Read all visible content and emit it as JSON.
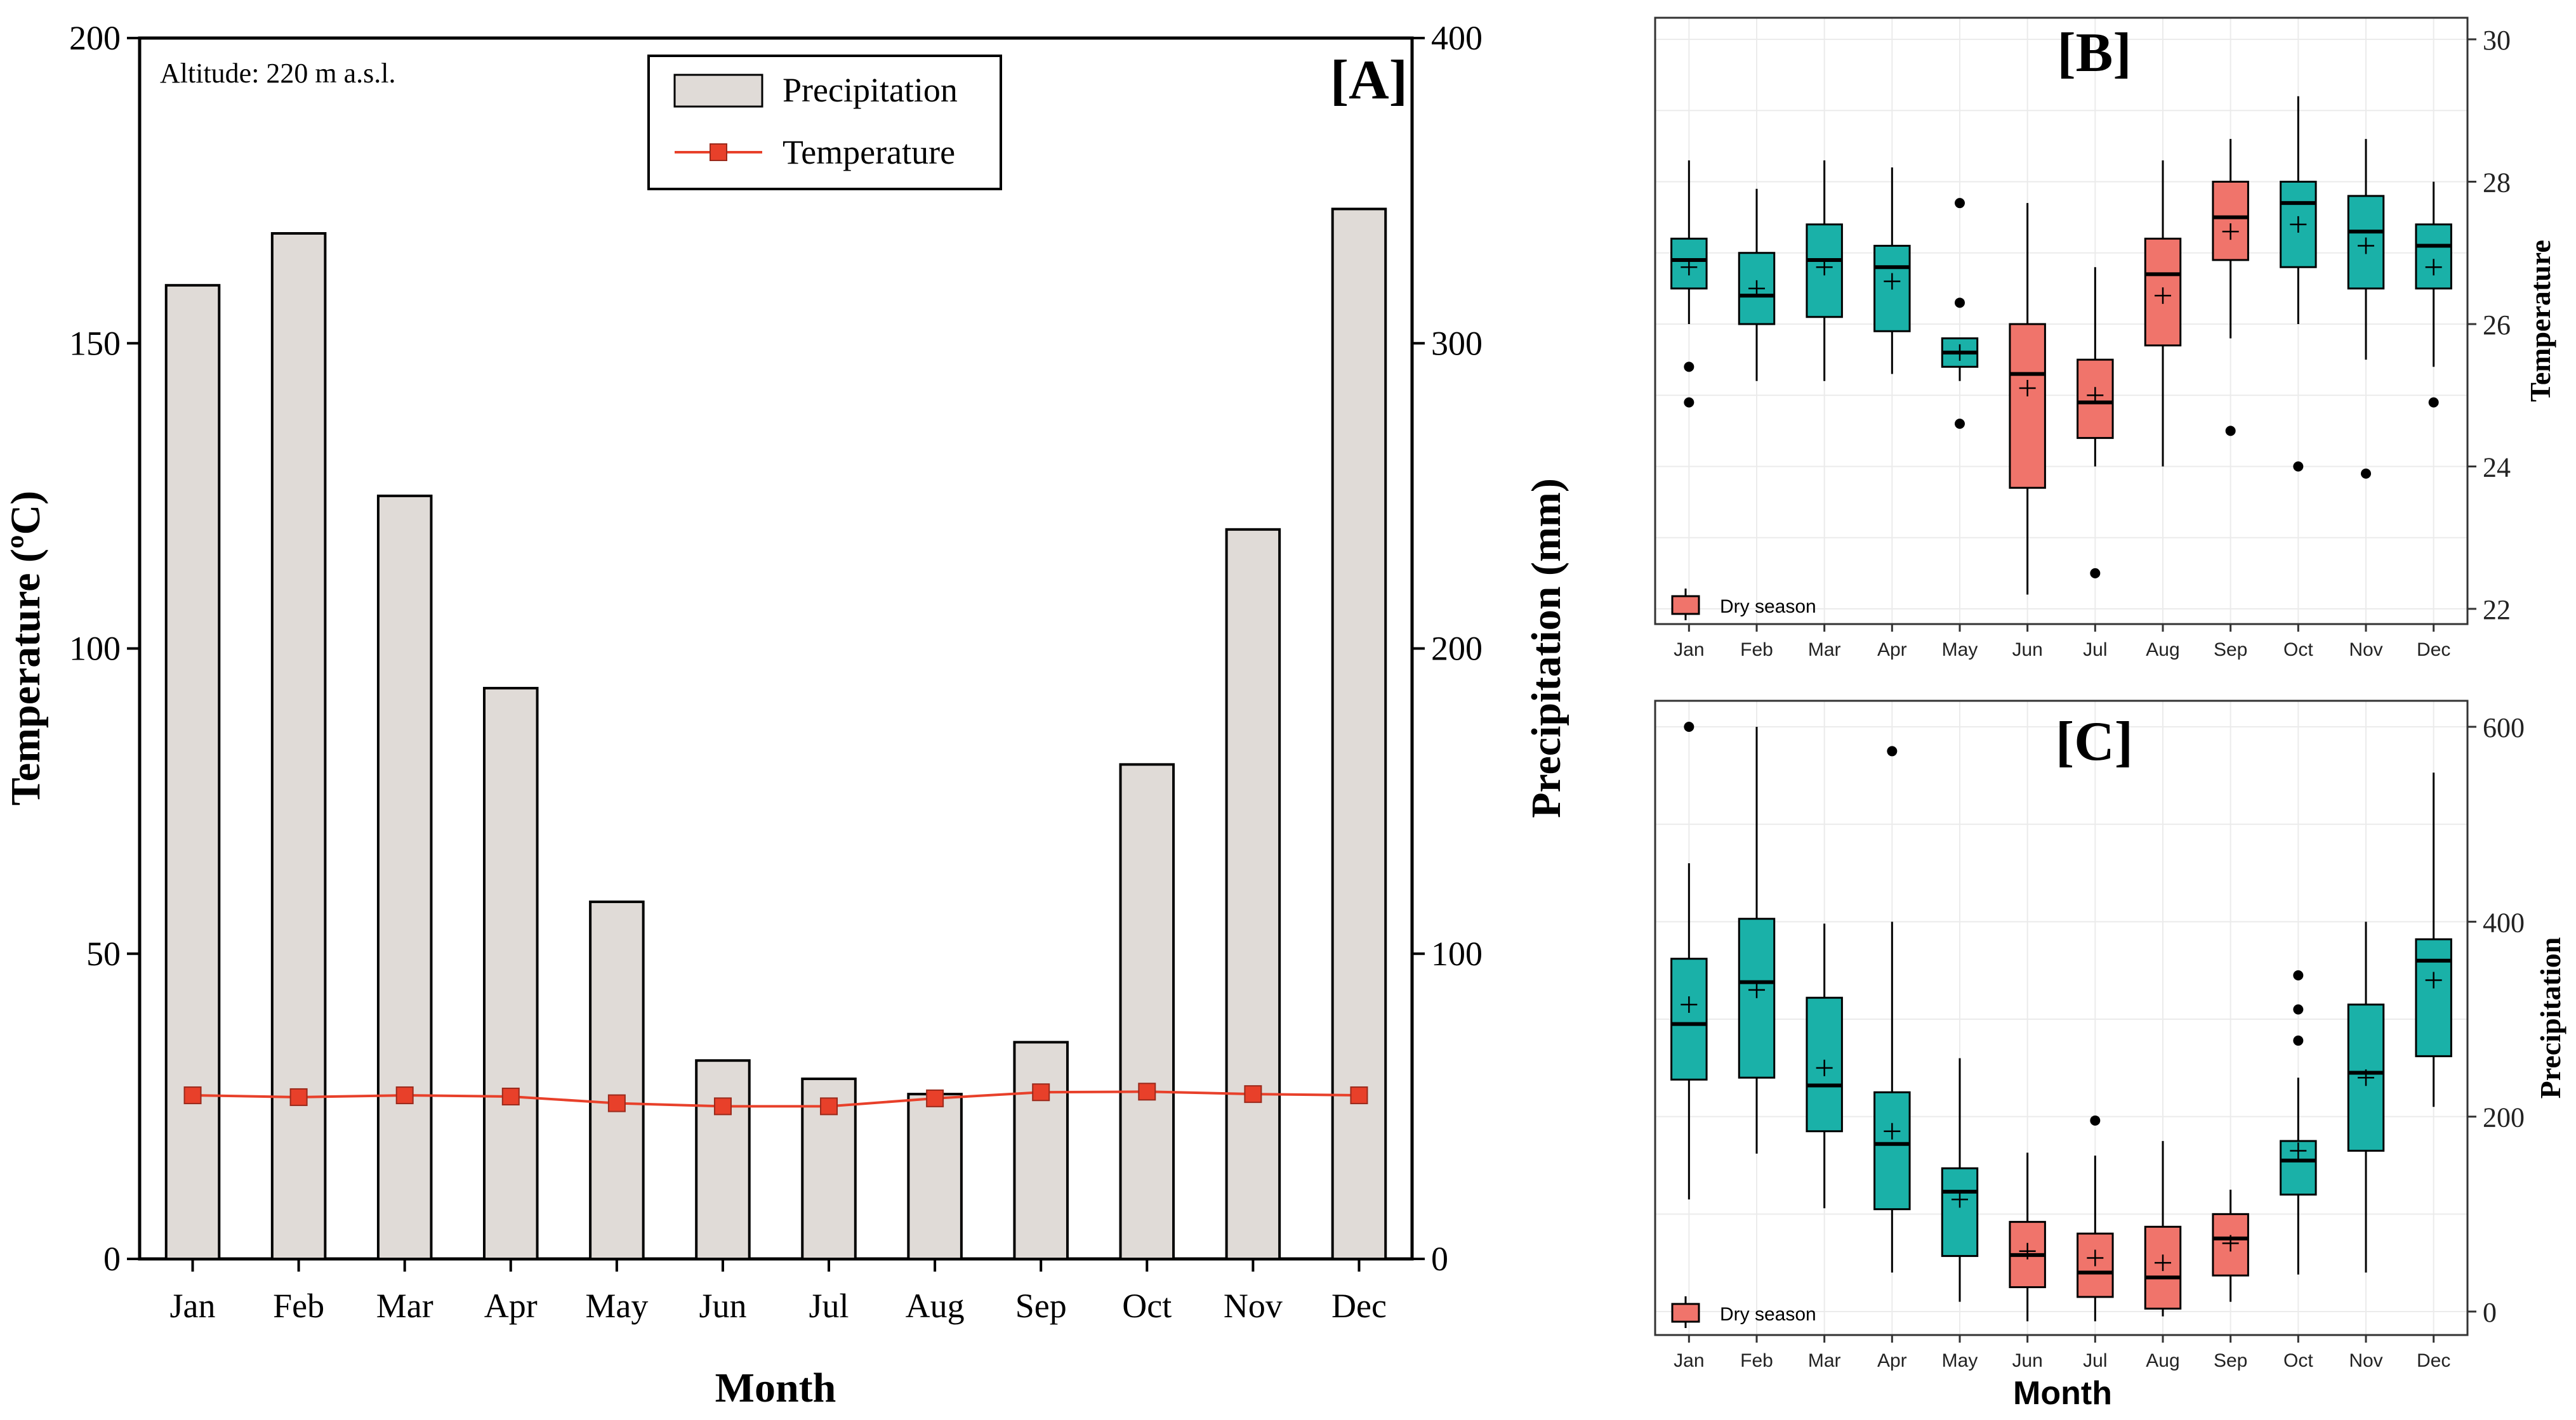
{
  "months": [
    "Jan",
    "Feb",
    "Mar",
    "Apr",
    "May",
    "Jun",
    "Jul",
    "Aug",
    "Sep",
    "Oct",
    "Nov",
    "Dec"
  ],
  "colors": {
    "bar_fill": "#e0dbd7",
    "temp_line": "#e8402a",
    "wet": "#1ab1a8",
    "dry": "#f0746b",
    "grid": "#ebebeb"
  },
  "chart_data": [
    {
      "type": "bar",
      "panel_label": "[A]",
      "annotation": "Altitude: 220 m a.s.l.",
      "xlabel": "Month",
      "ylabel_left": "Temperature (ºC)",
      "ylabel_right": "Precipitation (mm)",
      "ylim_left": [
        0,
        200
      ],
      "ylim_right": [
        0,
        400
      ],
      "yticks_left": [
        "0",
        "50",
        "100",
        "150",
        "200"
      ],
      "yticks_right": [
        "0",
        "100",
        "200",
        "300",
        "400"
      ],
      "categories": [
        "Jan",
        "Feb",
        "Mar",
        "Apr",
        "May",
        "Jun",
        "Jul",
        "Aug",
        "Sep",
        "Oct",
        "Nov",
        "Dec"
      ],
      "series": [
        {
          "name": "Precipitation",
          "type": "bar",
          "axis": "right",
          "values": [
            319,
            336,
            250,
            187,
            117,
            65,
            59,
            54,
            71,
            162,
            239,
            344
          ]
        },
        {
          "name": "Temperature",
          "type": "line",
          "axis": "left",
          "values": [
            26.8,
            26.5,
            26.8,
            26.6,
            25.5,
            25.0,
            25.0,
            26.3,
            27.3,
            27.4,
            27.0,
            26.8
          ]
        }
      ]
    },
    {
      "type": "boxplot",
      "panel_label": "[B]",
      "ylabel": "Temperature",
      "ylim": [
        21.8,
        30.3
      ],
      "yticks": [
        "22",
        "24",
        "26",
        "28",
        "30"
      ],
      "legend": "Dry season",
      "categories": [
        "Jan",
        "Feb",
        "Mar",
        "Apr",
        "May",
        "Jun",
        "Jul",
        "Aug",
        "Sep",
        "Oct",
        "Nov",
        "Dec"
      ],
      "dry": [
        false,
        false,
        false,
        false,
        false,
        true,
        true,
        true,
        true,
        false,
        false,
        false
      ],
      "stats": [
        {
          "whislo": 26.0,
          "q1": 26.5,
          "med": 26.9,
          "q3": 27.2,
          "whishi": 28.3,
          "mean": 26.8,
          "fliers": [
            25.4,
            24.9
          ]
        },
        {
          "whislo": 25.2,
          "q1": 26.0,
          "med": 26.4,
          "q3": 27.0,
          "whishi": 27.9,
          "mean": 26.5,
          "fliers": []
        },
        {
          "whislo": 25.2,
          "q1": 26.1,
          "med": 26.9,
          "q3": 27.4,
          "whishi": 28.3,
          "mean": 26.8,
          "fliers": []
        },
        {
          "whislo": 25.3,
          "q1": 25.9,
          "med": 26.8,
          "q3": 27.1,
          "whishi": 28.2,
          "mean": 26.6,
          "fliers": []
        },
        {
          "whislo": 25.2,
          "q1": 25.4,
          "med": 25.6,
          "q3": 25.8,
          "whishi": 25.8,
          "mean": 25.6,
          "fliers": [
            27.7,
            26.3,
            24.6
          ]
        },
        {
          "whislo": 22.2,
          "q1": 23.7,
          "med": 25.3,
          "q3": 26.0,
          "whishi": 27.7,
          "mean": 25.1,
          "fliers": []
        },
        {
          "whislo": 24.0,
          "q1": 24.4,
          "med": 24.9,
          "q3": 25.5,
          "whishi": 26.8,
          "mean": 25.0,
          "fliers": [
            22.5
          ]
        },
        {
          "whislo": 24.0,
          "q1": 25.7,
          "med": 26.7,
          "q3": 27.2,
          "whishi": 28.3,
          "mean": 26.4,
          "fliers": []
        },
        {
          "whislo": 25.8,
          "q1": 26.9,
          "med": 27.5,
          "q3": 28.0,
          "whishi": 28.6,
          "mean": 27.3,
          "fliers": [
            24.5
          ]
        },
        {
          "whislo": 26.0,
          "q1": 26.8,
          "med": 27.7,
          "q3": 28.0,
          "whishi": 29.2,
          "mean": 27.4,
          "fliers": [
            24.0
          ]
        },
        {
          "whislo": 25.5,
          "q1": 26.5,
          "med": 27.3,
          "q3": 27.8,
          "whishi": 28.6,
          "mean": 27.1,
          "fliers": [
            23.9
          ]
        },
        {
          "whislo": 25.4,
          "q1": 26.5,
          "med": 27.1,
          "q3": 27.4,
          "whishi": 28.0,
          "mean": 26.8,
          "fliers": [
            24.9
          ]
        }
      ]
    },
    {
      "type": "boxplot",
      "panel_label": "[C]",
      "xlabel": "Month",
      "ylabel": "Precipitation",
      "ylim": [
        -20,
        620
      ],
      "yticks": [
        "0",
        "200",
        "400",
        "600"
      ],
      "legend": "Dry season",
      "categories": [
        "Jan",
        "Feb",
        "Mar",
        "Apr",
        "May",
        "Jun",
        "Jul",
        "Aug",
        "Sep",
        "Oct",
        "Nov",
        "Dec"
      ],
      "dry": [
        false,
        false,
        false,
        false,
        false,
        true,
        true,
        true,
        true,
        false,
        false,
        false
      ],
      "stats": [
        {
          "whislo": 115,
          "q1": 238,
          "med": 295,
          "q3": 362,
          "whishi": 460,
          "mean": 315,
          "fliers": [
            600
          ]
        },
        {
          "whislo": 162,
          "q1": 240,
          "med": 338,
          "q3": 403,
          "whishi": 600,
          "mean": 330,
          "fliers": []
        },
        {
          "whislo": 106,
          "q1": 185,
          "med": 232,
          "q3": 322,
          "whishi": 398,
          "mean": 250,
          "fliers": []
        },
        {
          "whislo": 40,
          "q1": 105,
          "med": 172,
          "q3": 225,
          "whishi": 400,
          "mean": 185,
          "fliers": [
            575
          ]
        },
        {
          "whislo": 10,
          "q1": 57,
          "med": 123,
          "q3": 147,
          "whishi": 260,
          "mean": 115,
          "fliers": []
        },
        {
          "whislo": -10,
          "q1": 25,
          "med": 58,
          "q3": 92,
          "whishi": 163,
          "mean": 62,
          "fliers": []
        },
        {
          "whislo": -10,
          "q1": 15,
          "med": 40,
          "q3": 80,
          "whishi": 160,
          "mean": 55,
          "fliers": [
            196
          ]
        },
        {
          "whislo": -5,
          "q1": 3,
          "med": 35,
          "q3": 87,
          "whishi": 175,
          "mean": 50,
          "fliers": []
        },
        {
          "whislo": 10,
          "q1": 37,
          "med": 75,
          "q3": 100,
          "whishi": 125,
          "mean": 70,
          "fliers": []
        },
        {
          "whislo": 38,
          "q1": 120,
          "med": 155,
          "q3": 175,
          "whishi": 240,
          "mean": 165,
          "fliers": [
            345,
            310,
            278
          ]
        },
        {
          "whislo": 40,
          "q1": 165,
          "med": 245,
          "q3": 315,
          "whishi": 400,
          "mean": 240,
          "fliers": []
        },
        {
          "whislo": 210,
          "q1": 262,
          "med": 360,
          "q3": 382,
          "whishi": 553,
          "mean": 340,
          "fliers": []
        }
      ]
    }
  ]
}
